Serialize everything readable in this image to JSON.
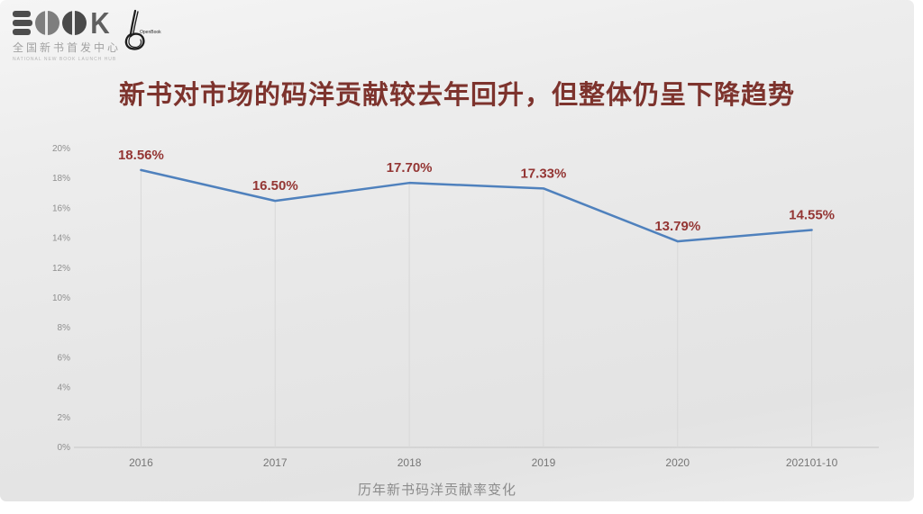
{
  "header": {
    "book_logo": {
      "letter_k": "K",
      "subtitle": "全国新书首发中心",
      "tagline": "NATIONAL NEW BOOK LAUNCH HUB"
    },
    "openbook_logo": {
      "label": "OpenBook",
      "glyph": "b"
    }
  },
  "title": "新书对市场的码洋贡献较去年回升，但整体仍呈下降趋势",
  "caption": "历年新书码洋贡献率变化",
  "chart_data": {
    "type": "line",
    "categories": [
      "2016",
      "2017",
      "2018",
      "2019",
      "2020",
      "202101-10"
    ],
    "values": [
      18.56,
      16.5,
      17.7,
      17.33,
      13.79,
      14.55
    ],
    "labels": [
      "18.56%",
      "16.50%",
      "17.70%",
      "17.33%",
      "13.79%",
      "14.55%"
    ],
    "title": "",
    "xlabel": "历年新书码洋贡献率变化",
    "ylabel": "",
    "ylim": [
      0,
      20
    ],
    "ytick_step": 2,
    "ytick_suffix": "%",
    "grid": "vertical drop lines from points to axis",
    "legend": "none",
    "line_color": "#4f81bd",
    "label_color": "#943634"
  },
  "colors": {
    "slide_background_top": "#f5f5f5",
    "slide_background_bottom": "#e3e3e3",
    "title_text": "#7d332d",
    "data_label": "#943634",
    "series_line": "#4f81bd",
    "axis_text": "#8f8f8f"
  }
}
